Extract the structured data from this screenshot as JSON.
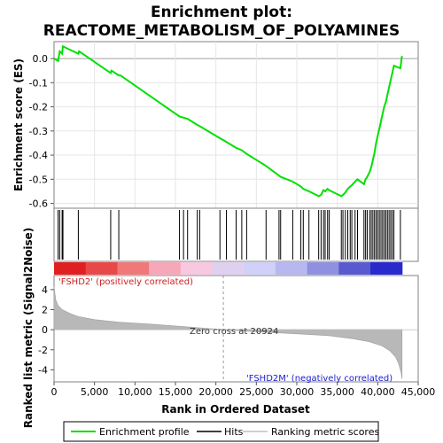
{
  "chart_data": {
    "type": "line",
    "title_lines": [
      "Enrichment plot:",
      "REACTOME_METABOLISM_OF_POLYAMINES"
    ],
    "xlabel": "Rank in Ordered Dataset",
    "ylabel_top": "Enrichment score (ES)",
    "ylabel_bottom": "Ranked list metric (Signal2Noise)",
    "xlim": [
      0,
      45000
    ],
    "x_ticks": [
      0,
      5000,
      10000,
      15000,
      20000,
      25000,
      30000,
      35000,
      40000,
      45000
    ],
    "x_tick_labels": [
      "0",
      "5,000",
      "10,000",
      "15,000",
      "20,000",
      "25,000",
      "30,000",
      "35,000",
      "40,000",
      "45,000"
    ],
    "es_ylim": [
      -0.62,
      0.07
    ],
    "es_ticks": [
      0.0,
      -0.1,
      -0.2,
      -0.3,
      -0.4,
      -0.5,
      -0.6
    ],
    "es_tick_labels": [
      "0.0",
      "-0.1",
      "-0.2",
      "-0.3",
      "-0.4",
      "-0.5",
      "-0.6"
    ],
    "metric_ylim": [
      -5.2,
      5.4
    ],
    "metric_ticks": [
      4,
      2,
      0,
      -2,
      -4
    ],
    "metric_tick_labels": [
      "4",
      "2",
      "0",
      "-2",
      "-4"
    ],
    "total_genes": 43000,
    "series": [
      {
        "name": "Enrichment profile",
        "color": "#00e000",
        "x": [
          0,
          500,
          700,
          1000,
          1100,
          3000,
          3100,
          7000,
          7100,
          8000,
          8200,
          15500,
          16000,
          16500,
          17700,
          18000,
          20500,
          21300,
          22500,
          23200,
          23800,
          26200,
          27800,
          28000,
          29500,
          30500,
          30800,
          31500,
          32700,
          33000,
          33300,
          33500,
          33800,
          34000,
          35500,
          35700,
          36000,
          36300,
          36600,
          36800,
          37200,
          37500,
          38300,
          38500,
          38700,
          39000,
          39200,
          39400,
          39600,
          39800,
          40000,
          40200,
          40400,
          40600,
          40800,
          41000,
          41200,
          41400,
          41600,
          41800,
          42000,
          42800,
          43000
        ],
        "values": [
          0.0,
          -0.01,
          0.03,
          0.02,
          0.05,
          0.02,
          0.03,
          -0.06,
          -0.05,
          -0.07,
          -0.07,
          -0.24,
          -0.245,
          -0.25,
          -0.275,
          -0.28,
          -0.33,
          -0.345,
          -0.37,
          -0.38,
          -0.395,
          -0.445,
          -0.485,
          -0.49,
          -0.51,
          -0.53,
          -0.54,
          -0.55,
          -0.57,
          -0.565,
          -0.545,
          -0.55,
          -0.54,
          -0.545,
          -0.57,
          -0.565,
          -0.555,
          -0.54,
          -0.53,
          -0.525,
          -0.51,
          -0.5,
          -0.52,
          -0.5,
          -0.49,
          -0.47,
          -0.45,
          -0.42,
          -0.39,
          -0.35,
          -0.32,
          -0.29,
          -0.26,
          -0.23,
          -0.2,
          -0.18,
          -0.15,
          -0.12,
          -0.09,
          -0.06,
          -0.03,
          -0.04,
          0.01
        ]
      }
    ],
    "hits": [
      500,
      700,
      1000,
      1100,
      3000,
      7000,
      8000,
      15500,
      16000,
      16500,
      17700,
      18000,
      20500,
      21300,
      22500,
      23200,
      23800,
      26200,
      27800,
      28000,
      29500,
      30500,
      30800,
      31500,
      32700,
      33000,
      33300,
      33500,
      33800,
      34000,
      35500,
      35700,
      36000,
      36300,
      36600,
      36800,
      37200,
      37500,
      38300,
      38500,
      38700,
      39000,
      39200,
      39400,
      39600,
      39800,
      40000,
      40200,
      40400,
      40600,
      40800,
      41000,
      41200,
      41400,
      41600,
      41800,
      42000,
      42800
    ],
    "metric_profile": {
      "x": [
        0,
        200,
        500,
        1000,
        2000,
        3000,
        5000,
        8000,
        12000,
        16000,
        20924,
        25000,
        30000,
        34000,
        37000,
        39000,
        40500,
        41500,
        42200,
        42600,
        42900,
        43000
      ],
      "values": [
        4.3,
        3.0,
        2.4,
        2.0,
        1.6,
        1.3,
        1.0,
        0.75,
        0.55,
        0.3,
        0.0,
        -0.2,
        -0.4,
        -0.6,
        -0.9,
        -1.2,
        -1.6,
        -2.1,
        -2.7,
        -3.4,
        -4.3,
        -4.9
      ]
    },
    "colorbar_colors": [
      "#e02020",
      "#e94848",
      "#f07878",
      "#f6a8b8",
      "#f8c8e0",
      "#e0d0f0",
      "#d0d0f8",
      "#b8b8f0",
      "#9090e0",
      "#5a5ad0",
      "#2a2acc"
    ],
    "label_positive": "'FSHD2' (positively correlated)",
    "label_negative": "'FSHD2M' (negatively correlated)",
    "zero_cross_label": "Zero cross at 20924",
    "zero_cross": 20924,
    "legend": [
      {
        "label": "Enrichment profile",
        "color": "#00e000"
      },
      {
        "label": "Hits",
        "color": "#000000"
      },
      {
        "label": "Ranking metric scores",
        "color": "#c0c0c0"
      }
    ]
  }
}
